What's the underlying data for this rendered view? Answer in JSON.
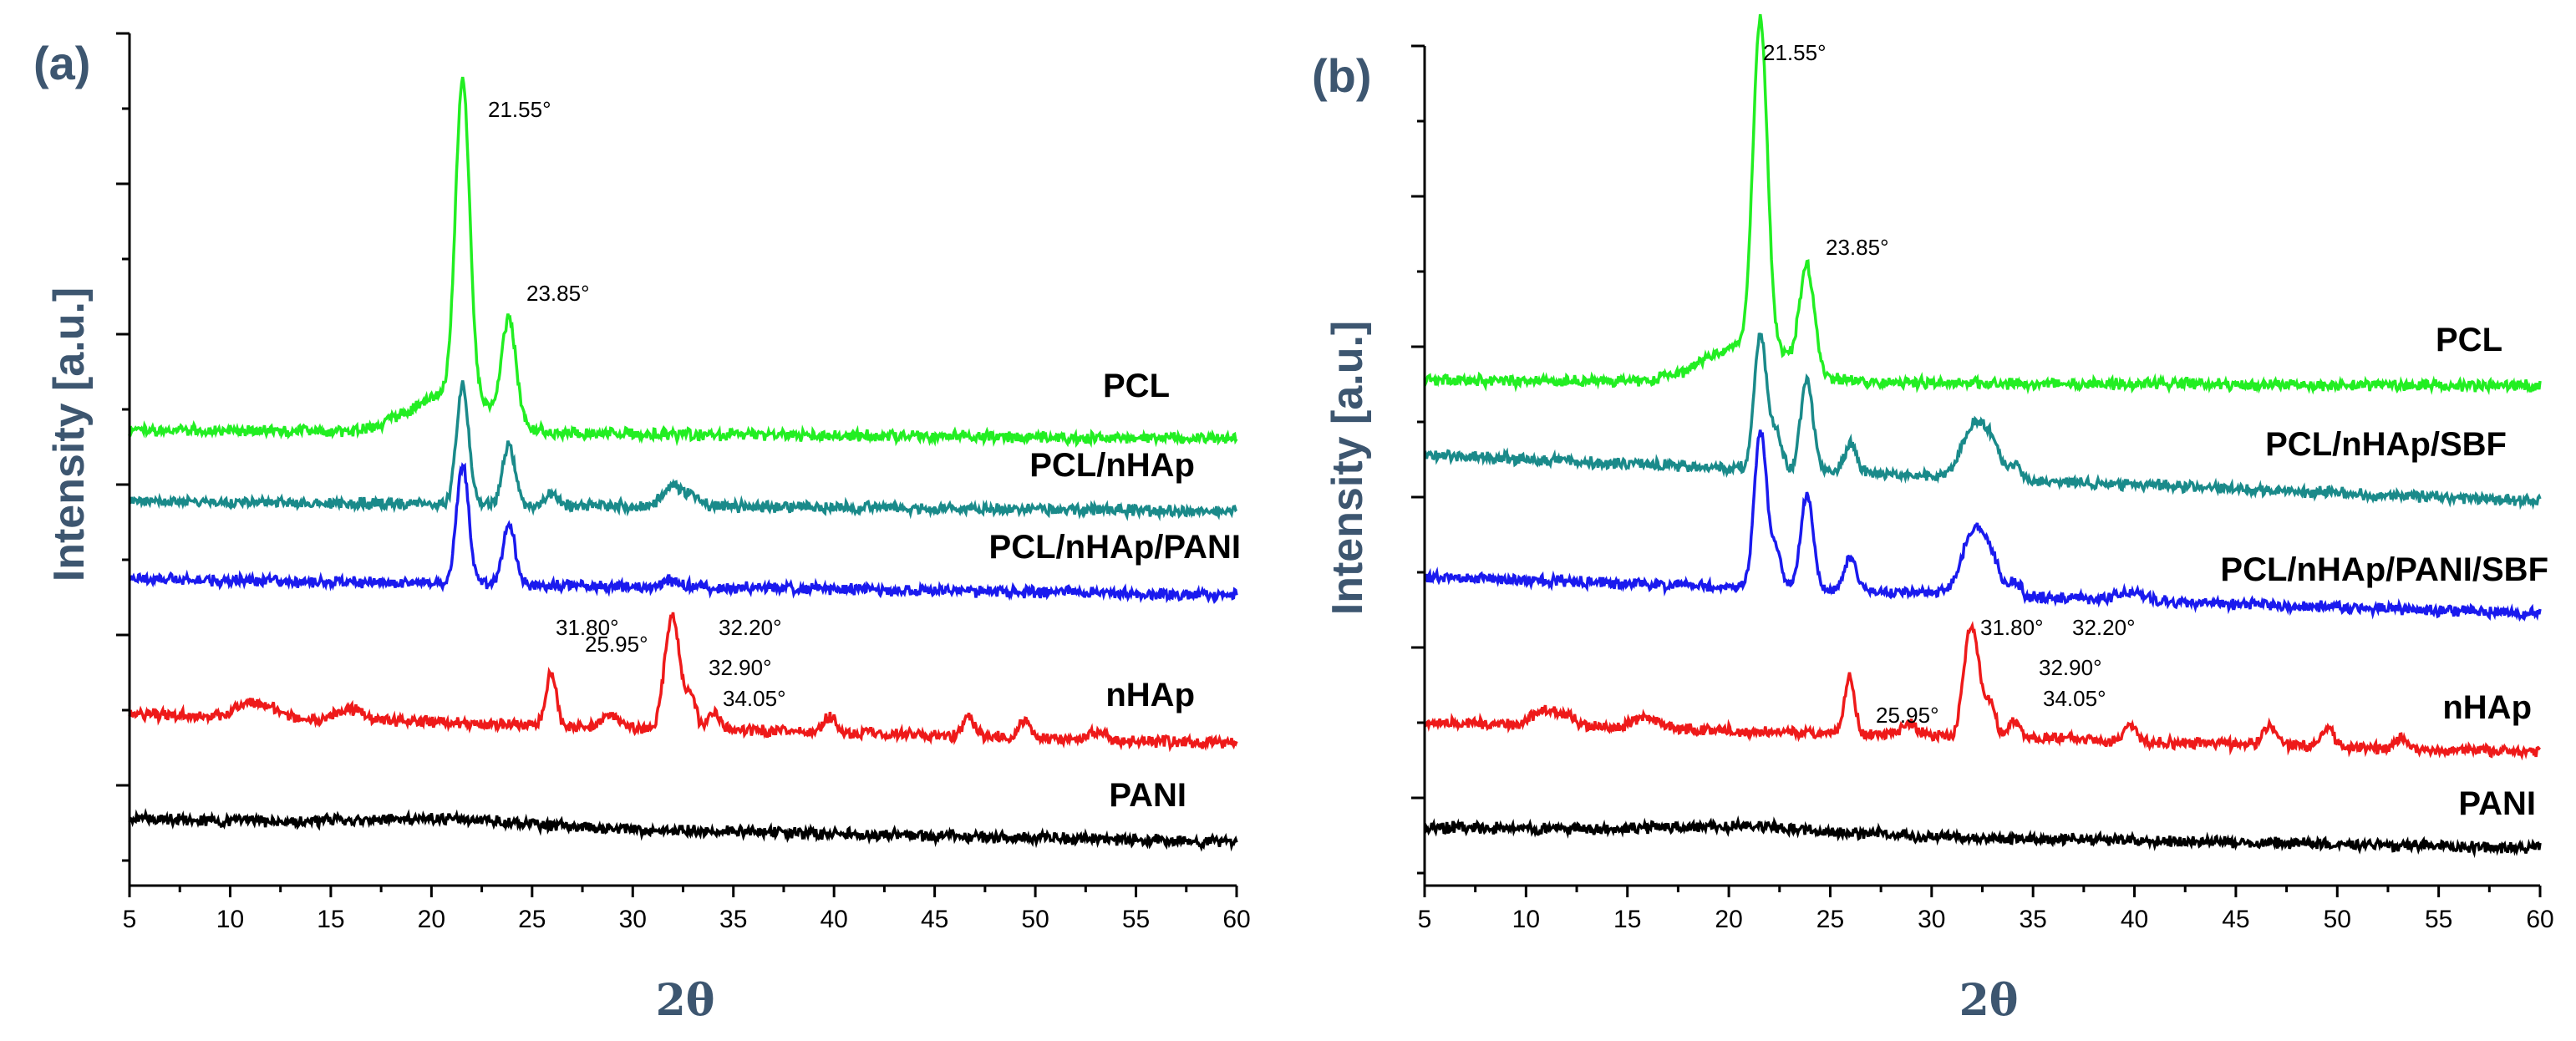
{
  "chart_data": [
    {
      "type": "line",
      "panel_label": "(a)",
      "xlabel": "2θ",
      "ylabel": "Intensity [a.u.]",
      "xlim": [
        5,
        60
      ],
      "x_ticks": [
        "5",
        "10",
        "15",
        "20",
        "25",
        "30",
        "35",
        "40",
        "45",
        "50",
        "55",
        "60"
      ],
      "series": [
        {
          "name": "PCL",
          "color": "#22ee22"
        },
        {
          "name": "PCL/nHAp",
          "color": "#1a8a8a"
        },
        {
          "name": "PCL/nHAp/PANI",
          "color": "#1a1aee"
        },
        {
          "name": "nHAp",
          "color": "#ee1a1a"
        },
        {
          "name": "PANI",
          "color": "#000000"
        }
      ],
      "annotations": [
        {
          "text": "21.55°",
          "x": 21.55,
          "series": "PCL"
        },
        {
          "text": "23.85°",
          "x": 23.85,
          "series": "PCL"
        },
        {
          "text": "25.95°",
          "x": 25.95,
          "series": "nHAp"
        },
        {
          "text": "31.80°",
          "x": 31.8,
          "series": "nHAp"
        },
        {
          "text": "32.20°",
          "x": 32.2,
          "series": "nHAp"
        },
        {
          "text": "32.90°",
          "x": 32.9,
          "series": "nHAp"
        },
        {
          "text": "34.05°",
          "x": 34.05,
          "series": "nHAp"
        }
      ]
    },
    {
      "type": "line",
      "panel_label": "(b)",
      "xlabel": "2θ",
      "ylabel": "Intensity [a.u.]",
      "xlim": [
        5,
        60
      ],
      "x_ticks": [
        "5",
        "10",
        "15",
        "20",
        "25",
        "30",
        "35",
        "40",
        "45",
        "50",
        "55",
        "60"
      ],
      "series": [
        {
          "name": "PCL",
          "color": "#22ee22"
        },
        {
          "name": "PCL/nHAp/SBF",
          "color": "#1a8a8a"
        },
        {
          "name": "PCL/nHAp/PANI/SBF",
          "color": "#1a1aee"
        },
        {
          "name": "nHAp",
          "color": "#ee1a1a"
        },
        {
          "name": "PANI",
          "color": "#000000"
        }
      ],
      "annotations": [
        {
          "text": "21.55°",
          "x": 21.55,
          "series": "PCL"
        },
        {
          "text": "23.85°",
          "x": 23.85,
          "series": "PCL"
        },
        {
          "text": "25.95°",
          "x": 25.95,
          "series": "nHAp"
        },
        {
          "text": "31.80°",
          "x": 31.8,
          "series": "nHAp"
        },
        {
          "text": "32.20°",
          "x": 32.2,
          "series": "nHAp"
        },
        {
          "text": "32.90°",
          "x": 32.9,
          "series": "nHAp"
        },
        {
          "text": "34.05°",
          "x": 34.05,
          "series": "nHAp"
        }
      ]
    }
  ]
}
